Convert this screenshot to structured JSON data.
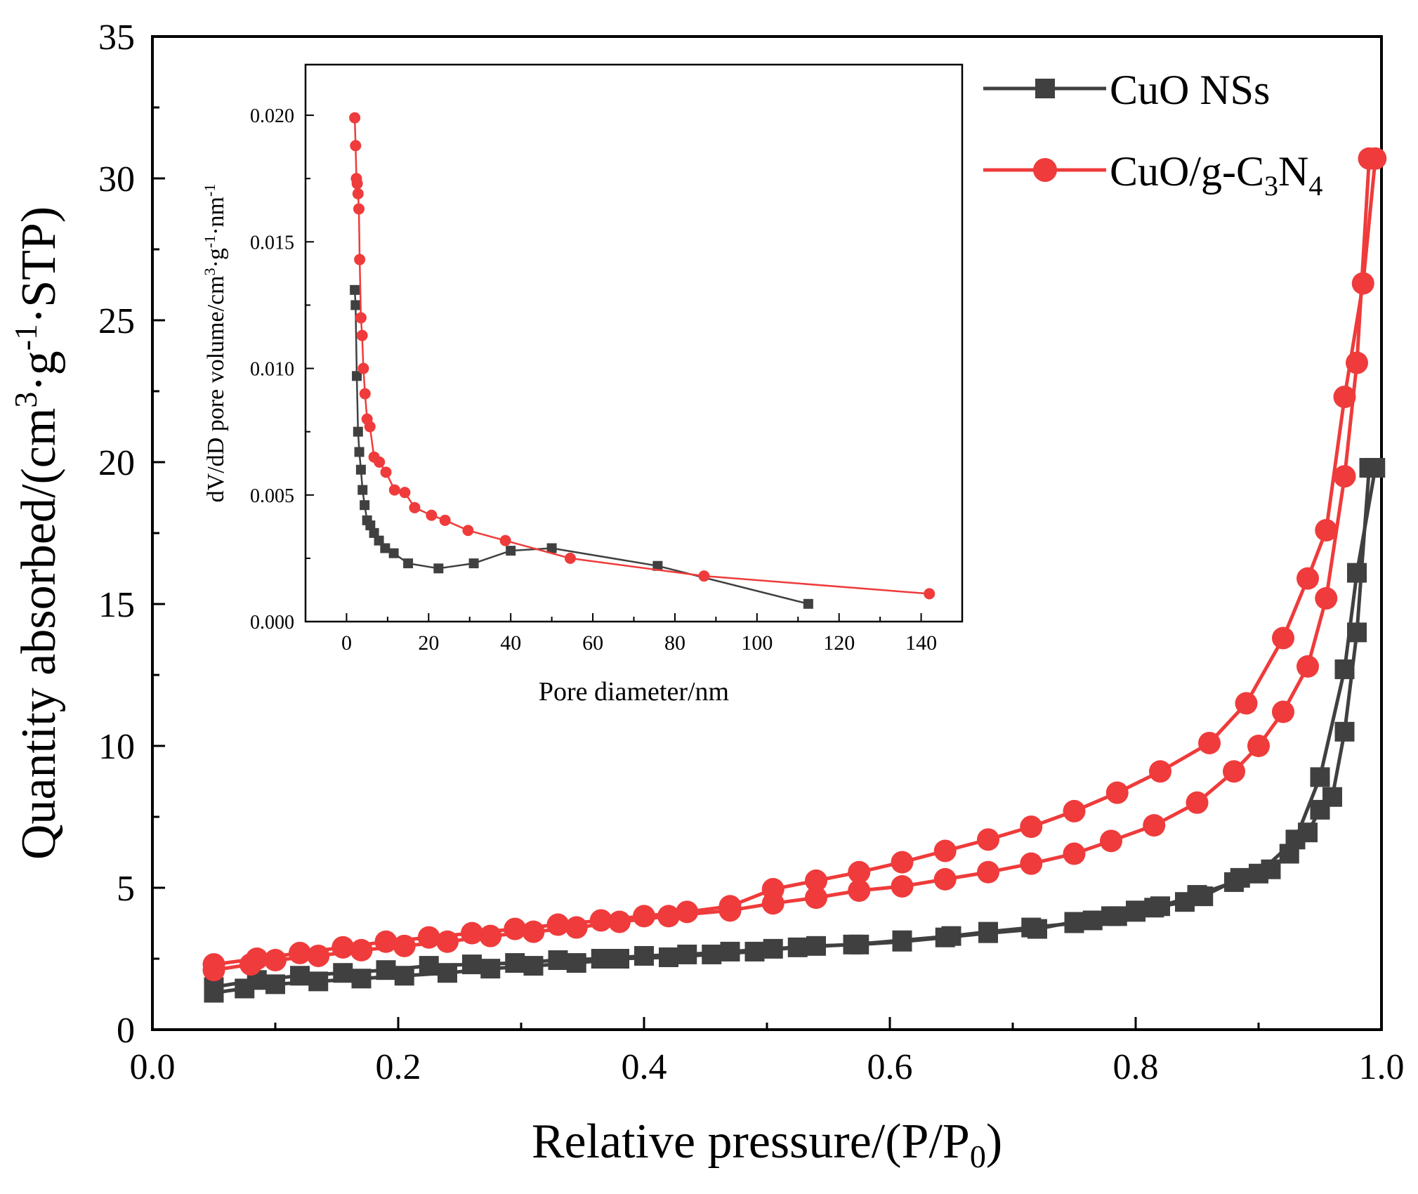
{
  "chart_data": [
    {
      "type": "line",
      "xlabel": "Relative pressure/(P/P",
      "xlabel_sub": "0",
      "xlabel_end": ")",
      "ylabel": "Quantity absorbed/(cm",
      "ylabel_sup1": "3",
      "ylabel_mid": "·g",
      "ylabel_sup2": "-1",
      "ylabel_end": "·STP)",
      "xlim": [
        0.0,
        1.0
      ],
      "ylim": [
        0,
        35
      ],
      "xticks": [
        0.0,
        0.2,
        0.4,
        0.6,
        0.8,
        1.0
      ],
      "xtick_labels": [
        "0.0",
        "0.2",
        "0.4",
        "0.6",
        "0.8",
        "1.0"
      ],
      "yticks": [
        0,
        5,
        10,
        15,
        20,
        25,
        30,
        35
      ],
      "ytick_labels": [
        "0",
        "5",
        "10",
        "15",
        "20",
        "25",
        "30",
        "35"
      ],
      "legend_position": "top-right",
      "series": [
        {
          "name": "CuO NSs",
          "color": "#404040",
          "marker": "square",
          "adsorption": {
            "x": [
              0.05,
              0.075,
              0.1,
              0.135,
              0.17,
              0.205,
              0.24,
              0.275,
              0.31,
              0.345,
              0.38,
              0.42,
              0.455,
              0.49,
              0.525,
              0.57,
              0.61,
              0.65,
              0.68,
              0.715,
              0.75,
              0.765,
              0.785,
              0.8,
              0.815,
              0.84,
              0.855,
              0.885,
              0.91,
              0.925,
              0.94,
              0.95,
              0.96,
              0.97,
              0.98,
              0.99
            ],
            "y": [
              1.3,
              1.45,
              1.6,
              1.7,
              1.8,
              1.9,
              2.0,
              2.15,
              2.25,
              2.35,
              2.5,
              2.55,
              2.65,
              2.75,
              2.9,
              3.0,
              3.15,
              3.3,
              3.45,
              3.6,
              3.75,
              3.85,
              4.0,
              4.15,
              4.3,
              4.5,
              4.7,
              5.35,
              5.65,
              6.2,
              6.95,
              7.75,
              8.2,
              10.5,
              14.0,
              19.8
            ]
          },
          "desorption": {
            "x": [
              0.995,
              0.98,
              0.97,
              0.95,
              0.93,
              0.9,
              0.88,
              0.85,
              0.82,
              0.8,
              0.78,
              0.75,
              0.72,
              0.68,
              0.645,
              0.61,
              0.575,
              0.54,
              0.505,
              0.47,
              0.435,
              0.4,
              0.365,
              0.33,
              0.295,
              0.26,
              0.225,
              0.19,
              0.155,
              0.12,
              0.085,
              0.05
            ],
            "y": [
              19.8,
              16.1,
              12.7,
              8.9,
              6.7,
              5.5,
              5.2,
              4.75,
              4.35,
              4.2,
              4.0,
              3.8,
              3.55,
              3.4,
              3.25,
              3.1,
              3.0,
              2.95,
              2.85,
              2.75,
              2.65,
              2.6,
              2.5,
              2.45,
              2.35,
              2.3,
              2.25,
              2.1,
              2.0,
              1.9,
              1.75,
              1.5
            ]
          }
        },
        {
          "name": "CuO/g-C",
          "name_sub1": "3",
          "name_mid": "N",
          "name_sub2": "4",
          "color": "#ef3b3b",
          "marker": "circle",
          "adsorption": {
            "x": [
              0.05,
              0.08,
              0.1,
              0.135,
              0.17,
              0.205,
              0.24,
              0.275,
              0.31,
              0.345,
              0.38,
              0.42,
              0.47,
              0.505,
              0.54,
              0.575,
              0.61,
              0.645,
              0.68,
              0.715,
              0.75,
              0.78,
              0.815,
              0.85,
              0.88,
              0.9,
              0.92,
              0.94,
              0.955,
              0.97,
              0.98,
              0.99
            ],
            "y": [
              2.1,
              2.3,
              2.45,
              2.6,
              2.8,
              2.95,
              3.1,
              3.3,
              3.45,
              3.6,
              3.8,
              4.0,
              4.2,
              4.45,
              4.65,
              4.9,
              5.05,
              5.3,
              5.55,
              5.85,
              6.2,
              6.65,
              7.2,
              8.0,
              9.1,
              10.0,
              11.2,
              12.8,
              15.2,
              19.5,
              23.5,
              30.7
            ]
          },
          "desorption": {
            "x": [
              0.995,
              0.985,
              0.97,
              0.955,
              0.94,
              0.92,
              0.89,
              0.86,
              0.82,
              0.785,
              0.75,
              0.715,
              0.68,
              0.645,
              0.61,
              0.575,
              0.54,
              0.505,
              0.47,
              0.435,
              0.4,
              0.365,
              0.33,
              0.295,
              0.26,
              0.225,
              0.19,
              0.155,
              0.12,
              0.085,
              0.05
            ],
            "y": [
              30.7,
              26.3,
              22.3,
              17.6,
              15.9,
              13.8,
              11.5,
              10.1,
              9.1,
              8.35,
              7.7,
              7.15,
              6.7,
              6.3,
              5.9,
              5.55,
              5.25,
              4.95,
              4.35,
              4.15,
              4.0,
              3.85,
              3.7,
              3.55,
              3.4,
              3.25,
              3.1,
              2.9,
              2.7,
              2.5,
              2.3
            ]
          }
        }
      ]
    },
    {
      "type": "line",
      "inset": true,
      "xlabel": "Pore diameter/nm",
      "ylabel": "dV/dD pore volume/cm",
      "ylabel_sup1": "3",
      "ylabel_mid1": "·g",
      "ylabel_sup2": "-1",
      "ylabel_mid2": "·nm",
      "ylabel_sup3": "-1",
      "xlim": [
        -10,
        150
      ],
      "ylim": [
        0.0,
        0.022
      ],
      "xticks": [
        0,
        20,
        40,
        60,
        80,
        100,
        120,
        140
      ],
      "xtick_labels": [
        "0",
        "20",
        "40",
        "60",
        "80",
        "100",
        "120",
        "140"
      ],
      "yticks": [
        0.0,
        0.005,
        0.01,
        0.015,
        0.02
      ],
      "ytick_labels": [
        "0.000",
        "0.005",
        "0.010",
        "0.015",
        "0.020"
      ],
      "series": [
        {
          "name": "CuO NSs",
          "color": "#404040",
          "marker": "square",
          "x": [
            2.0,
            2.2,
            2.5,
            2.8,
            3.1,
            3.5,
            3.9,
            4.4,
            5.0,
            5.8,
            6.7,
            7.9,
            9.4,
            11.5,
            15.0,
            22.4,
            31.0,
            40.0,
            50.0,
            75.8,
            112.5
          ],
          "y": [
            0.0131,
            0.0125,
            0.0097,
            0.0075,
            0.0067,
            0.006,
            0.0052,
            0.0046,
            0.004,
            0.0038,
            0.0035,
            0.0032,
            0.0029,
            0.0027,
            0.0023,
            0.0021,
            0.0023,
            0.0028,
            0.0029,
            0.0022,
            0.0007
          ]
        },
        {
          "name": "CuO/g-C3N4",
          "color": "#ef3b3b",
          "marker": "circle",
          "x": [
            2.0,
            2.2,
            2.4,
            2.6,
            2.8,
            3.0,
            3.2,
            3.5,
            3.8,
            4.1,
            4.5,
            5.0,
            5.7,
            6.7,
            8.0,
            9.6,
            11.7,
            14.2,
            16.6,
            20.7,
            24.0,
            29.6,
            38.7,
            54.5,
            87.1,
            142.0
          ],
          "y": [
            0.0199,
            0.0188,
            0.0175,
            0.0173,
            0.0169,
            0.0163,
            0.0143,
            0.012,
            0.0113,
            0.01,
            0.009,
            0.008,
            0.0077,
            0.0065,
            0.0063,
            0.0059,
            0.0052,
            0.0051,
            0.0045,
            0.0042,
            0.004,
            0.0036,
            0.0032,
            0.0025,
            0.0018,
            0.0011
          ]
        }
      ]
    }
  ]
}
